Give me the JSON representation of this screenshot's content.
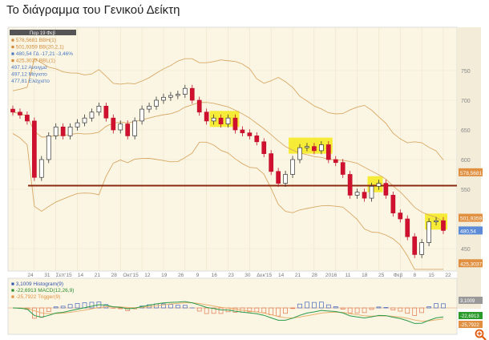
{
  "title": "Το διάγραμμα του Γενικού Δείκτη",
  "chart_data": {
    "type": "candlestick",
    "date_header": "Παρ 19 Φεβ",
    "legend": [
      {
        "text": "578,5681 BBH(1)",
        "color": "#d08a3a"
      },
      {
        "text": "501,9359 BB(20,2,1)",
        "color": "#d08a3a"
      },
      {
        "text": "480,54 ΓΔ -17,21 -3,46%",
        "color": "#4a78c0"
      },
      {
        "text": "425,3037 BBL(1)",
        "color": "#d08a3a"
      },
      {
        "text": "497,12 Ανοιγμα",
        "color": "#4a78c0"
      },
      {
        "text": "497,12 Μέγιστο",
        "color": "#4a78c0"
      },
      {
        "text": "477,81 Ελάχιστο",
        "color": "#4a78c0"
      }
    ],
    "y_ticks": [
      450,
      550,
      600,
      650,
      700,
      750
    ],
    "ylim": [
      410,
      780
    ],
    "x_ticks": [
      "24",
      "31",
      "Σεπ'15",
      "14",
      "21",
      "28",
      "Οκτ'15",
      "12",
      "19",
      "26",
      "9",
      "16",
      "23",
      "30",
      "Δεκ'15",
      "14",
      "21",
      "28",
      "2016",
      "11",
      "18",
      "25",
      "Φεβ",
      "8",
      "15",
      "22"
    ],
    "closes": [
      680,
      675,
      665,
      570,
      600,
      640,
      655,
      640,
      655,
      662,
      670,
      680,
      690,
      670,
      650,
      660,
      640,
      665,
      685,
      690,
      700,
      705,
      708,
      710,
      720,
      700,
      680,
      665,
      670,
      660,
      670,
      650,
      645,
      640,
      630,
      610,
      580,
      560,
      575,
      600,
      620,
      622,
      615,
      625,
      600,
      595,
      575,
      540,
      545,
      535,
      555,
      560,
      540,
      510,
      500,
      470,
      440,
      460,
      495,
      497,
      480.54
    ],
    "support_level": 556,
    "highlights": [
      [
        28,
        31
      ],
      [
        39,
        44
      ],
      [
        50,
        51
      ],
      [
        58,
        60
      ]
    ],
    "price_labels": [
      {
        "text": "578,5681",
        "value": 578.57,
        "color": "#e09040"
      },
      {
        "text": "501,9359",
        "value": 501.94,
        "color": "#e09040"
      },
      {
        "text": "480,54",
        "value": 480.54,
        "color": "#5b8bd6"
      },
      {
        "text": "425,3037",
        "value": 425.3,
        "color": "#e09040"
      }
    ],
    "macd": {
      "legend": [
        {
          "text": "3,1009 Histogram(9)",
          "color": "#3355aa"
        },
        {
          "text": "-22,6913 MACD(12,26,9)",
          "color": "#2a8a2a"
        },
        {
          "text": "-25,7922 Trigger(9)",
          "color": "#e09040"
        }
      ],
      "labels": [
        {
          "text": "3,1009",
          "color": "#999"
        },
        {
          "text": "-22,6913",
          "color": "#2a9a2a"
        },
        {
          "text": "-25,7922",
          "color": "#e09040"
        }
      ]
    }
  }
}
